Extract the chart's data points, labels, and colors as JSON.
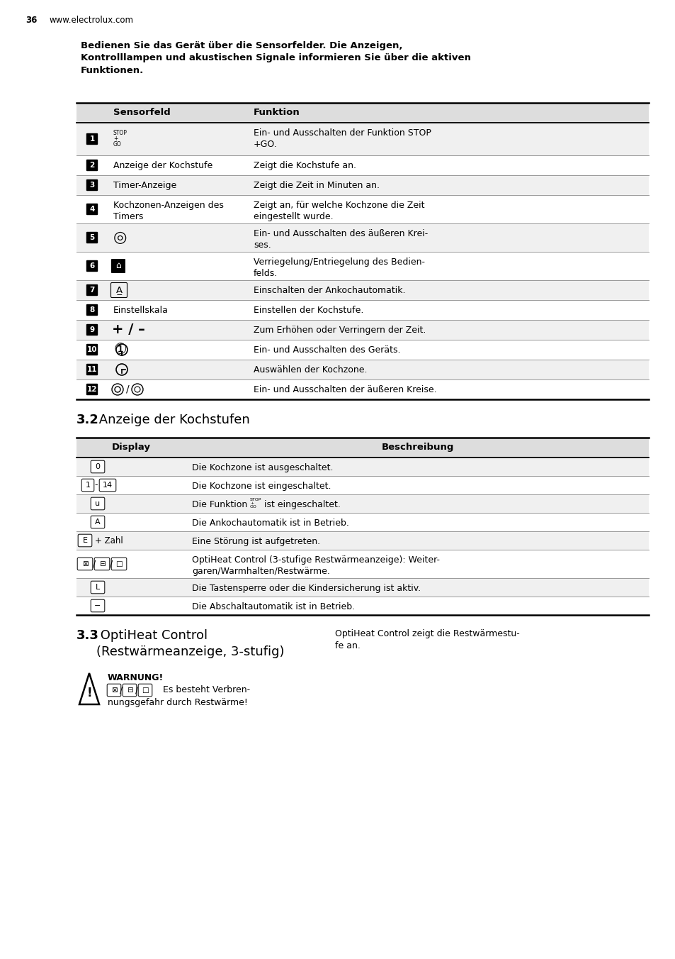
{
  "page_num": "36",
  "website": "www.electrolux.com",
  "intro_bold": "Bedienen Sie das Gerät über die Sensorfelder. Die Anzeigen,\nKontrolllampen und akustischen Signale informieren Sie über die aktiven\nFunktionen.",
  "table1_header": [
    "Sensorfeld",
    "Funktion"
  ],
  "section32_bold": "3.2",
  "section32_title": " Anzeige der Kochstufen",
  "table2_header": [
    "Display",
    "Beschreibung"
  ],
  "section33_bold": "3.3",
  "section33_title": " OptiHeat Control\n(Restwärmeanzeige, 3-stufig)",
  "section33_right": "OptiHeat Control zeigt die Restwärmestu-\nfe an.",
  "warning_title": "WARNUNG!",
  "warning_text": "Es besteht Verbren-\nnungsgefahr durch Restwärme!",
  "bg_color": "#ffffff",
  "header_bg": "#dddddd",
  "row_bg_odd": "#f0f0f0",
  "row_bg_even": "#ffffff"
}
